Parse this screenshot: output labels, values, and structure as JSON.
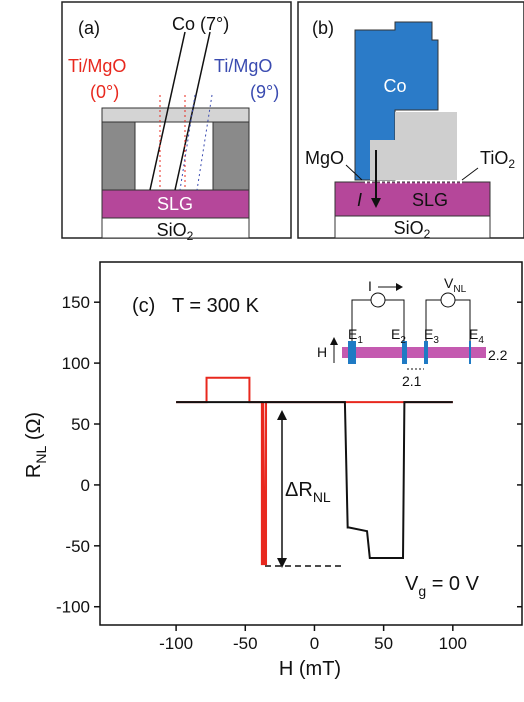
{
  "panel_a": {
    "label": "(a)",
    "beam": "Co (7°)",
    "left_beam": "Ti/MgO",
    "left_angle": "(0°)",
    "right_beam": "Ti/MgO",
    "right_angle": "(9°)",
    "layer": "SLG",
    "substrate": {
      "main": "SiO",
      "sub": "2"
    }
  },
  "panel_b": {
    "label": "(b)",
    "electrode": "Co",
    "barrier": "MgO",
    "oxide": {
      "main": "TiO",
      "sub": "2"
    },
    "current": "I",
    "layer": "SLG",
    "substrate": {
      "main": "SiO",
      "sub": "2"
    }
  },
  "chart_data": {
    "type": "line",
    "label": "(c)",
    "temperature": "T = 300 K",
    "annotation": {
      "main": "ΔR",
      "sub": "NL"
    },
    "gate": {
      "main": "V",
      "sub": "g",
      "rest": " = 0 V"
    },
    "ylabel": {
      "main": "R",
      "sub": "NL",
      "rest": " (Ω)"
    },
    "xlabel": "H (mT)",
    "inset": {
      "current": "I",
      "voltage": {
        "main": "V",
        "sub": "NL"
      },
      "field": "H",
      "electrodes": [
        {
          "main": "E",
          "sub": "1"
        },
        {
          "main": "E",
          "sub": "2"
        },
        {
          "main": "E",
          "sub": "3"
        },
        {
          "main": "E",
          "sub": "4"
        }
      ],
      "gap_right": "2.2",
      "gap_mid": "2.1"
    },
    "xlim": [
      -155,
      150
    ],
    "ylim": [
      -115,
      183
    ],
    "xticks": [
      -100,
      -50,
      0,
      50,
      100
    ],
    "yticks": [
      -100,
      -50,
      0,
      50,
      100,
      150
    ],
    "series": [
      {
        "color": "#e8281e",
        "x": [
          -100,
          -78,
          -78,
          -47,
          -47,
          -38,
          -38,
          -37,
          -37,
          -36,
          -35,
          -35,
          100
        ],
        "values": [
          68,
          68,
          88,
          88,
          68,
          68,
          -65,
          -65,
          68,
          -65,
          -65,
          68,
          68
        ]
      },
      {
        "color": "#111111",
        "x": [
          -100,
          22,
          24,
          25,
          38,
          40,
          64,
          65,
          100
        ],
        "values": [
          68,
          68,
          -35,
          -35,
          -38,
          -60,
          -60,
          68,
          68
        ]
      }
    ]
  }
}
